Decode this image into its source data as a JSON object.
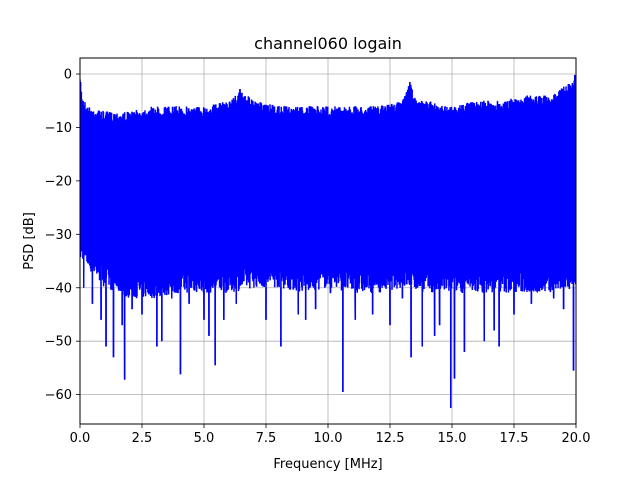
{
  "chart_data": {
    "type": "line",
    "title": "channel060 logain",
    "xlabel": "Frequency [MHz]",
    "ylabel": "PSD [dB]",
    "xlim": [
      0,
      20
    ],
    "ylim": [
      -65.5,
      3
    ],
    "xticks": [
      0,
      2.5,
      5,
      7.5,
      10,
      12.5,
      15,
      17.5,
      20
    ],
    "xtick_labels": [
      "0.0",
      "2.5",
      "5.0",
      "7.5",
      "10.0",
      "12.5",
      "15.0",
      "17.5",
      "20.0"
    ],
    "yticks": [
      0,
      -10,
      -20,
      -30,
      -40,
      -50,
      -60
    ],
    "ytick_labels": [
      "0",
      "−10",
      "−20",
      "−30",
      "−40",
      "−50",
      "−60"
    ],
    "grid": true,
    "legend": "none",
    "series": [
      {
        "color": "#0000ff",
        "upper_envelope": {
          "x": [
            0,
            0.1,
            0.3,
            1,
            2,
            3,
            4,
            5,
            6,
            6.5,
            7,
            8,
            9,
            10,
            11,
            12,
            13,
            13.3,
            13.6,
            14,
            15,
            16,
            17,
            18,
            19,
            19.6,
            20
          ],
          "y": [
            -1,
            -4,
            -6,
            -7,
            -7,
            -6,
            -6,
            -6,
            -5,
            -3,
            -5,
            -6,
            -6,
            -6,
            -6,
            -6,
            -5,
            -1.5,
            -5,
            -5,
            -6,
            -5,
            -5,
            -4,
            -4,
            -2,
            -1
          ]
        },
        "lower_envelope": {
          "x": [
            0,
            1,
            2,
            3,
            4,
            5,
            6,
            7,
            8,
            9,
            10,
            11,
            12,
            13,
            14,
            15,
            16,
            17,
            18,
            19,
            20
          ],
          "y": [
            -33,
            -38,
            -40,
            -40,
            -39,
            -39,
            -39,
            -38,
            -38,
            -39,
            -38,
            -39,
            -39,
            -38,
            -39,
            -39,
            -39,
            -39,
            -39,
            -39,
            -38
          ]
        },
        "dips": [
          {
            "x": 0.15,
            "y": -38
          },
          {
            "x": 0.5,
            "y": -43
          },
          {
            "x": 0.85,
            "y": -46
          },
          {
            "x": 1.05,
            "y": -51
          },
          {
            "x": 1.35,
            "y": -53
          },
          {
            "x": 1.7,
            "y": -47
          },
          {
            "x": 1.8,
            "y": -57.2
          },
          {
            "x": 2.1,
            "y": -44
          },
          {
            "x": 2.5,
            "y": -45
          },
          {
            "x": 3.1,
            "y": -51
          },
          {
            "x": 3.3,
            "y": -50
          },
          {
            "x": 3.7,
            "y": -42
          },
          {
            "x": 4.05,
            "y": -56.2
          },
          {
            "x": 4.4,
            "y": -43
          },
          {
            "x": 5.0,
            "y": -46
          },
          {
            "x": 5.2,
            "y": -49
          },
          {
            "x": 5.45,
            "y": -54.5
          },
          {
            "x": 5.8,
            "y": -46
          },
          {
            "x": 6.3,
            "y": -43
          },
          {
            "x": 7.5,
            "y": -46
          },
          {
            "x": 8.1,
            "y": -51
          },
          {
            "x": 8.8,
            "y": -45
          },
          {
            "x": 9.1,
            "y": -46
          },
          {
            "x": 9.5,
            "y": -44
          },
          {
            "x": 10.1,
            "y": -41
          },
          {
            "x": 10.6,
            "y": -59.5
          },
          {
            "x": 11.1,
            "y": -46
          },
          {
            "x": 11.8,
            "y": -45
          },
          {
            "x": 12.5,
            "y": -47
          },
          {
            "x": 13.0,
            "y": -42
          },
          {
            "x": 13.35,
            "y": -53
          },
          {
            "x": 13.8,
            "y": -51
          },
          {
            "x": 14.3,
            "y": -49
          },
          {
            "x": 14.5,
            "y": -47
          },
          {
            "x": 14.95,
            "y": -62.5
          },
          {
            "x": 15.1,
            "y": -57
          },
          {
            "x": 15.5,
            "y": -52
          },
          {
            "x": 16.3,
            "y": -50
          },
          {
            "x": 16.7,
            "y": -48
          },
          {
            "x": 16.9,
            "y": -51
          },
          {
            "x": 17.5,
            "y": -45
          },
          {
            "x": 18.2,
            "y": -43
          },
          {
            "x": 19.1,
            "y": -42
          },
          {
            "x": 19.5,
            "y": -44
          },
          {
            "x": 19.9,
            "y": -55.5
          }
        ],
        "spikes": [
          {
            "x": 0.02,
            "y": -1.5
          },
          {
            "x": 6.45,
            "y": -2.8
          },
          {
            "x": 13.3,
            "y": -1.5
          },
          {
            "x": 19.95,
            "y": -0.2
          }
        ]
      }
    ]
  }
}
